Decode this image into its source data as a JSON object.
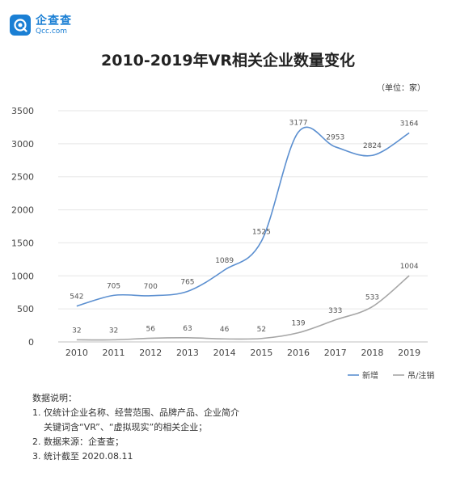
{
  "brand": {
    "name": "企查查",
    "sub": "Qcc.com"
  },
  "chart_data": {
    "type": "line",
    "title": "2010-2019年VR相关企业数量变化",
    "unit_note": "（单位：家）",
    "x": [
      "2010",
      "2011",
      "2012",
      "2013",
      "2014",
      "2015",
      "2016",
      "2017",
      "2018",
      "2019"
    ],
    "yticks": [
      "0",
      "500",
      "1000",
      "1500",
      "2000",
      "2500",
      "3000",
      "3500"
    ],
    "ylim": [
      0,
      3500
    ],
    "grid": true,
    "legend_position": "bottom-right",
    "series": [
      {
        "name": "新增",
        "color": "#5b8fd0",
        "values": [
          542,
          705,
          700,
          765,
          1089,
          1525,
          3177,
          2953,
          2824,
          3164
        ]
      },
      {
        "name": "吊/注销",
        "color": "#a6a6a6",
        "values": [
          32,
          32,
          56,
          63,
          46,
          52,
          139,
          333,
          533,
          1004
        ]
      }
    ]
  },
  "notes": {
    "heading": "数据说明：",
    "line1": "1. 仅统计企业名称、经营范围、品牌产品、企业简介",
    "line1b": "关键词含“VR”、“虚拟现实”的相关企业；",
    "line2": "2. 数据来源：企查查；",
    "line3": "3. 统计截至 2020.08.11"
  }
}
